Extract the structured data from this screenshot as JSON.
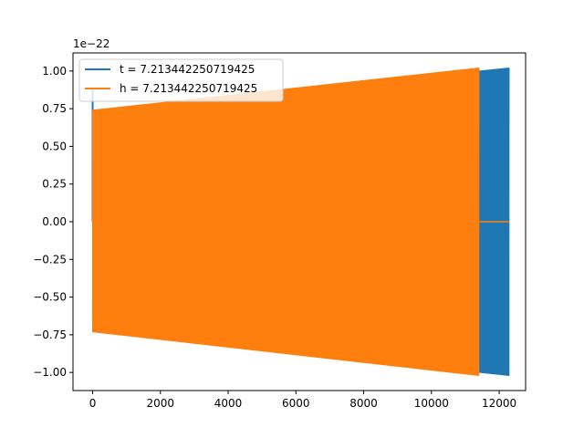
{
  "chart_data": {
    "type": "line",
    "title": "",
    "xlabel": "",
    "ylabel": "",
    "offset_text": "1e−22",
    "xlim": [
      -580,
      12780
    ],
    "ylim": [
      -1.12,
      1.12
    ],
    "x_ticks": [
      0,
      2000,
      4000,
      6000,
      8000,
      10000,
      12000
    ],
    "x_tick_labels": [
      "0",
      "2000",
      "4000",
      "6000",
      "8000",
      "10000",
      "12000"
    ],
    "y_ticks": [
      -1.0,
      -0.75,
      -0.5,
      -0.25,
      0.0,
      0.25,
      0.5,
      0.75,
      1.0
    ],
    "y_tick_labels": [
      "−1.00",
      "−0.75",
      "−0.50",
      "−0.25",
      "0.00",
      "0.25",
      "0.50",
      "0.75",
      "1.00"
    ],
    "grid": false,
    "legend_position": "top-left",
    "series": [
      {
        "name": "t = 7.213442250719425",
        "color": "#1f77b4",
        "start_x": 0,
        "end_x": 12290,
        "envelope_x": [
          0,
          12290
        ],
        "envelope_upper": [
          0.74,
          1.02
        ],
        "envelope_lower": [
          -0.73,
          -1.02
        ],
        "initial_spike": 0.88
      },
      {
        "name": "h = 7.213442250719425",
        "color": "#ff7f0e",
        "start_x": 0,
        "end_x": 11400,
        "envelope_x": [
          0,
          11400
        ],
        "envelope_upper": [
          0.74,
          1.02
        ],
        "envelope_lower": [
          -0.73,
          -1.02
        ],
        "tail_x": [
          11400,
          12290
        ],
        "tail_value": 0.0
      }
    ]
  }
}
